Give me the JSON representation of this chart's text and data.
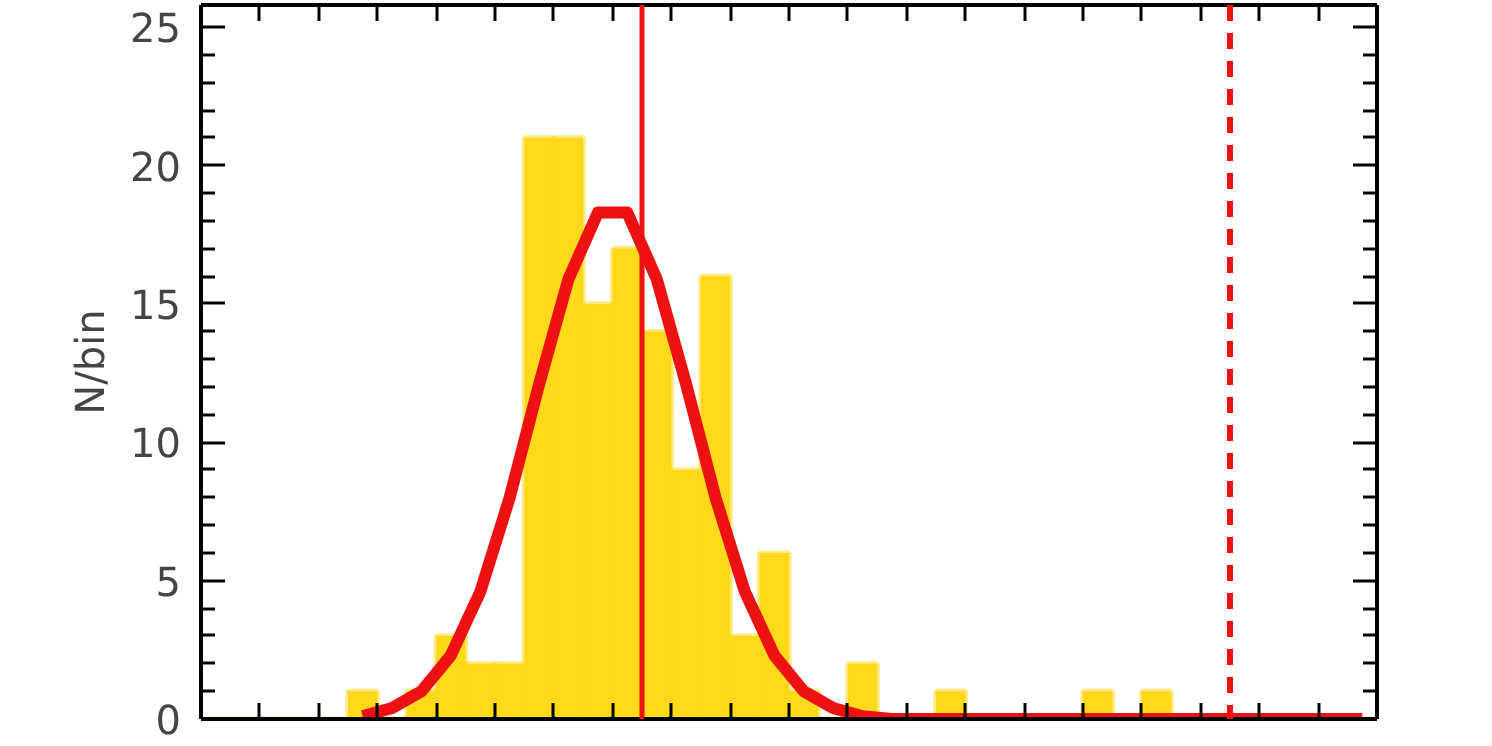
{
  "chart_data": {
    "type": "bar",
    "ylabel": "N/bin",
    "tick_labels": "y",
    "grid": false,
    "categories": [
      null,
      null,
      null,
      null,
      null,
      null,
      null,
      null,
      null,
      null,
      null,
      null,
      null,
      null,
      null,
      null,
      null,
      null,
      null,
      null,
      null,
      null,
      null,
      null,
      null,
      null,
      null,
      null,
      null,
      null,
      null,
      null,
      null,
      null,
      null,
      null,
      null,
      null,
      null,
      null
    ],
    "series": [
      {
        "color": "#ffd91a",
        "values": [
          0,
          0,
          0,
          0,
          0,
          1,
          0,
          1,
          3,
          2,
          2,
          21,
          21,
          15,
          17,
          14,
          9,
          16,
          3,
          6,
          1,
          0,
          2,
          0,
          0,
          1,
          0,
          0,
          0,
          0,
          1,
          0,
          1,
          0,
          0,
          0,
          0,
          0,
          0,
          0
        ]
      },
      {
        "type": "line",
        "color": "#ee1111",
        "values": [
          null,
          null,
          null,
          null,
          null,
          0.1,
          0.4,
          1.0,
          2.3,
          4.6,
          8.0,
          12.1,
          15.9,
          18.3,
          18.3,
          15.9,
          12.1,
          8.0,
          4.6,
          2.3,
          1.0,
          0.4,
          0.1,
          0,
          0,
          0,
          0,
          0,
          0,
          0,
          0,
          0,
          0,
          0,
          0,
          0,
          0,
          0,
          0,
          0
        ]
      }
    ],
    "ylim": [
      0,
      25.8
    ],
    "yticks": [
      0,
      {
        "value": 1,
        "label": null
      },
      {
        "value": 2,
        "label": null
      },
      {
        "value": 3,
        "label": null
      },
      {
        "value": 4,
        "label": null
      },
      5,
      {
        "value": 6,
        "label": null
      },
      {
        "value": 7,
        "label": null
      },
      {
        "value": 8,
        "label": null
      },
      {
        "value": 9,
        "label": null
      },
      10,
      {
        "value": 11,
        "label": null
      },
      {
        "value": 12,
        "label": null
      },
      {
        "value": 13,
        "label": null
      },
      {
        "value": 14,
        "label": null
      },
      15,
      {
        "value": 16,
        "label": null
      },
      {
        "value": 17,
        "label": null
      },
      {
        "value": 18,
        "label": null
      },
      {
        "value": 19,
        "label": null
      },
      20,
      {
        "value": 21,
        "label": null
      },
      {
        "value": 22,
        "label": null
      },
      {
        "value": 23,
        "label": null
      },
      {
        "value": 24,
        "label": null
      },
      25
    ]
  }
}
